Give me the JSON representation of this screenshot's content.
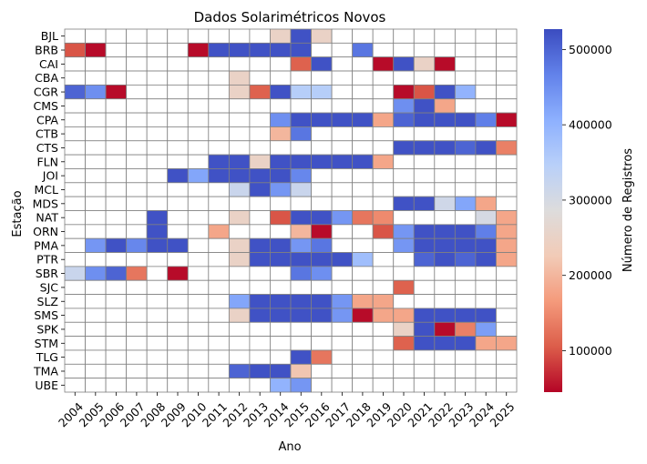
{
  "chart_data": {
    "type": "heatmap",
    "title": "Dados Solarimétricos Novos",
    "xlabel": "Ano",
    "ylabel": "Estação",
    "x": [
      "2004",
      "2005",
      "2006",
      "2007",
      "2008",
      "2009",
      "2010",
      "2011",
      "2012",
      "2013",
      "2014",
      "2015",
      "2016",
      "2017",
      "2018",
      "2019",
      "2020",
      "2021",
      "2022",
      "2023",
      "2024",
      "2025"
    ],
    "y": [
      "BJL",
      "BRB",
      "CAI",
      "CBA",
      "CGR",
      "CMS",
      "CPA",
      "CTB",
      "CTS",
      "FLN",
      "JOI",
      "MCL",
      "MDS",
      "NAT",
      "ORN",
      "PMA",
      "PTR",
      "SBR",
      "SJC",
      "SLZ",
      "SMS",
      "SPK",
      "STM",
      "TLG",
      "TMA",
      "UBE"
    ],
    "colorbar": {
      "label": "Número de Registros",
      "range": [
        45000,
        527040
      ],
      "ticks": [
        100000,
        200000,
        300000,
        400000,
        500000
      ],
      "tick_labels": [
        "100000",
        "200000",
        "300000",
        "400000",
        "500000"
      ]
    },
    "missing": "white",
    "values": [
      [
        null,
        null,
        null,
        null,
        null,
        null,
        null,
        null,
        null,
        null,
        250000,
        520000,
        250000,
        null,
        null,
        null,
        null,
        null,
        null,
        null,
        null,
        null
      ],
      [
        100000,
        50000,
        null,
        null,
        null,
        null,
        50000,
        520000,
        520000,
        520000,
        520000,
        520000,
        null,
        null,
        480000,
        null,
        null,
        null,
        null,
        null,
        null,
        null
      ],
      [
        null,
        null,
        null,
        null,
        null,
        null,
        null,
        null,
        null,
        null,
        null,
        110000,
        520000,
        null,
        null,
        50000,
        520000,
        250000,
        50000,
        null,
        null,
        null
      ],
      [
        null,
        null,
        null,
        null,
        null,
        null,
        null,
        null,
        250000,
        null,
        null,
        null,
        null,
        null,
        null,
        null,
        null,
        null,
        null,
        null,
        null,
        null
      ],
      [
        500000,
        450000,
        50000,
        null,
        null,
        null,
        null,
        null,
        250000,
        110000,
        520000,
        350000,
        350000,
        null,
        null,
        null,
        50000,
        100000,
        520000,
        400000,
        null,
        null
      ],
      [
        null,
        null,
        null,
        null,
        null,
        null,
        null,
        null,
        null,
        null,
        null,
        null,
        null,
        null,
        null,
        null,
        450000,
        520000,
        180000,
        null,
        null,
        null
      ],
      [
        null,
        null,
        null,
        null,
        null,
        null,
        null,
        null,
        null,
        null,
        450000,
        520000,
        520000,
        520000,
        520000,
        180000,
        500000,
        520000,
        520000,
        520000,
        470000,
        50000
      ],
      [
        null,
        null,
        null,
        null,
        null,
        null,
        null,
        null,
        null,
        null,
        200000,
        480000,
        null,
        null,
        null,
        null,
        null,
        null,
        null,
        null,
        null,
        null
      ],
      [
        null,
        null,
        null,
        null,
        null,
        null,
        null,
        null,
        null,
        null,
        null,
        null,
        null,
        null,
        null,
        null,
        520000,
        520000,
        520000,
        500000,
        520000,
        140000
      ],
      [
        null,
        null,
        null,
        null,
        null,
        null,
        null,
        520000,
        520000,
        250000,
        520000,
        520000,
        520000,
        520000,
        520000,
        180000,
        null,
        null,
        null,
        null,
        null,
        null
      ],
      [
        null,
        null,
        null,
        null,
        null,
        520000,
        420000,
        520000,
        520000,
        520000,
        520000,
        460000,
        null,
        null,
        null,
        null,
        null,
        null,
        null,
        null,
        null,
        null
      ],
      [
        null,
        null,
        null,
        null,
        null,
        null,
        null,
        null,
        320000,
        520000,
        440000,
        320000,
        null,
        null,
        null,
        null,
        null,
        null,
        null,
        null,
        null,
        null
      ],
      [
        null,
        null,
        null,
        null,
        null,
        null,
        null,
        null,
        null,
        null,
        null,
        null,
        null,
        null,
        null,
        null,
        520000,
        520000,
        310000,
        420000,
        180000,
        null
      ],
      [
        null,
        null,
        null,
        null,
        520000,
        null,
        null,
        null,
        250000,
        null,
        100000,
        520000,
        520000,
        440000,
        130000,
        150000,
        null,
        null,
        null,
        null,
        300000,
        180000
      ],
      [
        null,
        null,
        null,
        null,
        520000,
        null,
        null,
        180000,
        null,
        null,
        null,
        200000,
        50000,
        null,
        null,
        100000,
        440000,
        520000,
        520000,
        520000,
        470000,
        180000
      ],
      [
        null,
        440000,
        520000,
        460000,
        520000,
        520000,
        null,
        null,
        250000,
        520000,
        520000,
        440000,
        480000,
        null,
        null,
        null,
        440000,
        520000,
        520000,
        520000,
        520000,
        180000
      ],
      [
        null,
        null,
        null,
        null,
        null,
        null,
        null,
        null,
        250000,
        520000,
        520000,
        520000,
        520000,
        520000,
        380000,
        null,
        null,
        500000,
        520000,
        500000,
        520000,
        180000
      ],
      [
        320000,
        450000,
        500000,
        130000,
        null,
        50000,
        null,
        null,
        null,
        null,
        null,
        480000,
        450000,
        null,
        null,
        null,
        null,
        null,
        null,
        null,
        null,
        null
      ],
      [
        null,
        null,
        null,
        null,
        null,
        null,
        null,
        null,
        null,
        null,
        null,
        null,
        null,
        null,
        null,
        null,
        110000,
        null,
        null,
        null,
        null,
        null
      ],
      [
        null,
        null,
        null,
        null,
        null,
        null,
        null,
        null,
        420000,
        520000,
        520000,
        520000,
        520000,
        440000,
        180000,
        180000,
        null,
        null,
        null,
        null,
        null,
        null
      ],
      [
        null,
        null,
        null,
        null,
        null,
        null,
        null,
        null,
        250000,
        520000,
        520000,
        520000,
        520000,
        440000,
        50000,
        180000,
        180000,
        520000,
        520000,
        520000,
        520000,
        null
      ],
      [
        null,
        null,
        null,
        null,
        null,
        null,
        null,
        null,
        null,
        null,
        null,
        null,
        null,
        null,
        null,
        null,
        250000,
        520000,
        50000,
        140000,
        430000,
        null
      ],
      [
        null,
        null,
        null,
        null,
        null,
        null,
        null,
        null,
        null,
        null,
        null,
        null,
        null,
        null,
        null,
        null,
        110000,
        520000,
        520000,
        520000,
        180000,
        180000
      ],
      [
        null,
        null,
        null,
        null,
        null,
        null,
        null,
        null,
        null,
        null,
        null,
        520000,
        130000,
        null,
        null,
        null,
        null,
        null,
        null,
        null,
        null,
        null
      ],
      [
        null,
        null,
        null,
        null,
        null,
        null,
        null,
        null,
        500000,
        520000,
        520000,
        220000,
        null,
        null,
        null,
        null,
        null,
        null,
        null,
        null,
        null,
        null
      ],
      [
        null,
        null,
        null,
        null,
        null,
        null,
        null,
        null,
        null,
        null,
        400000,
        440000,
        null,
        null,
        null,
        null,
        null,
        null,
        null,
        null,
        null,
        null
      ]
    ]
  }
}
